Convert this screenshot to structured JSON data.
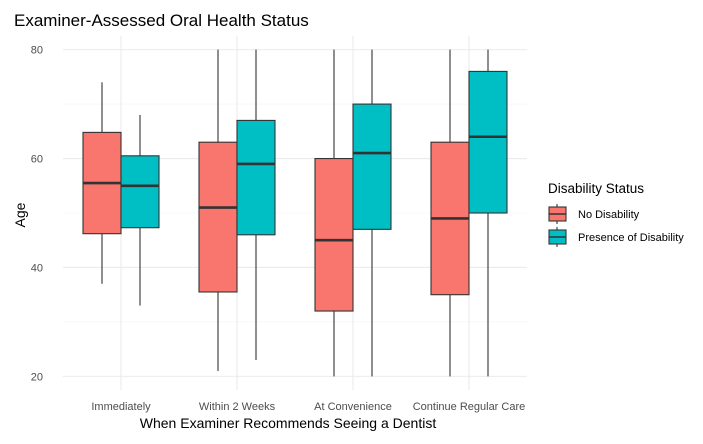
{
  "chart_data": {
    "type": "boxplot",
    "title": "Examiner-Assessed Oral Health Status",
    "xlabel": "When Examiner Recommends Seeing a Dentist",
    "ylabel": "Age",
    "ylim": [
      17.5,
      82.5
    ],
    "yticks": [
      20,
      40,
      60,
      80
    ],
    "grid": true,
    "legend": {
      "title": "Disability Status",
      "position": "right"
    },
    "categories": [
      "Immediately",
      "Within 2 Weeks",
      "At Convenience",
      "Continue Regular Care"
    ],
    "series": [
      {
        "name": "No Disability",
        "color": "#F8766D",
        "boxes": [
          {
            "min": 37,
            "q1": 46.2,
            "median": 55.5,
            "q3": 64.8,
            "max": 74
          },
          {
            "min": 21,
            "q1": 35.5,
            "median": 51,
            "q3": 63,
            "max": 80
          },
          {
            "min": 20,
            "q1": 32,
            "median": 45,
            "q3": 60,
            "max": 80
          },
          {
            "min": 20,
            "q1": 35,
            "median": 49,
            "q3": 63,
            "max": 80
          }
        ]
      },
      {
        "name": "Presence of Disability",
        "color": "#00BFC4",
        "boxes": [
          {
            "min": 33,
            "q1": 47.3,
            "median": 55,
            "q3": 60.5,
            "max": 68
          },
          {
            "min": 23,
            "q1": 46,
            "median": 59,
            "q3": 67,
            "max": 80
          },
          {
            "min": 20,
            "q1": 47,
            "median": 61,
            "q3": 70,
            "max": 80
          },
          {
            "min": 20,
            "q1": 50,
            "median": 64,
            "q3": 76,
            "max": 80
          }
        ]
      }
    ]
  }
}
